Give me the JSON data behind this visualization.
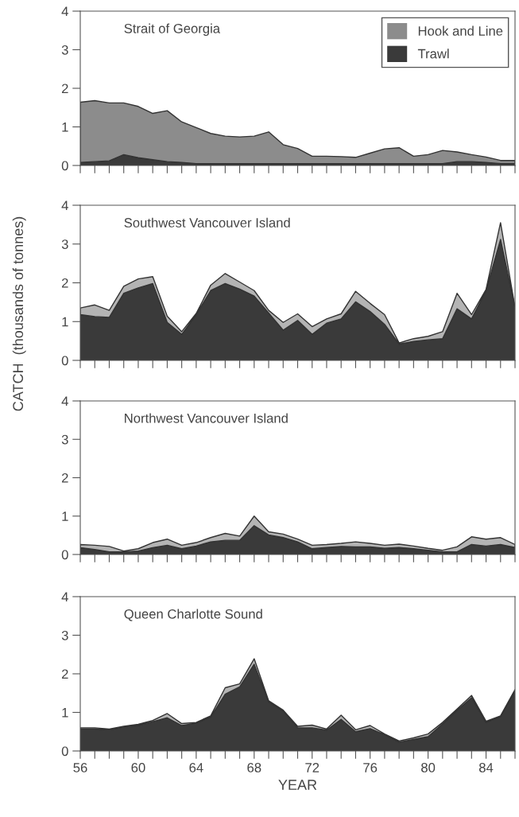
{
  "chart_data": [
    {
      "type": "area",
      "title": "Strait of Georgia",
      "stacked": true,
      "legend": "top right",
      "tick_labels": "y",
      "x": [
        56,
        57,
        58,
        59,
        60,
        61,
        62,
        63,
        64,
        65,
        66,
        67,
        68,
        69,
        70,
        71,
        72,
        73,
        74,
        75,
        76,
        77,
        78,
        79,
        80,
        81,
        82,
        83,
        84,
        85,
        86
      ],
      "xlim": [
        56,
        86
      ],
      "ylim": [
        0,
        4
      ],
      "yticks": [
        0,
        1,
        2,
        3,
        4
      ],
      "xticks": [
        56,
        {
          "value": 57,
          "label": null
        },
        {
          "value": 58,
          "label": null
        },
        {
          "value": 59,
          "label": null
        },
        60,
        {
          "value": 61,
          "label": null
        },
        {
          "value": 62,
          "label": null
        },
        {
          "value": 63,
          "label": null
        },
        64,
        {
          "value": 65,
          "label": null
        },
        {
          "value": 66,
          "label": null
        },
        {
          "value": 67,
          "label": null
        },
        68,
        {
          "value": 69,
          "label": null
        },
        {
          "value": 70,
          "label": null
        },
        {
          "value": 71,
          "label": null
        },
        72,
        {
          "value": 73,
          "label": null
        },
        {
          "value": 74,
          "label": null
        },
        {
          "value": 75,
          "label": null
        },
        76,
        {
          "value": 77,
          "label": null
        },
        {
          "value": 78,
          "label": null
        },
        {
          "value": 79,
          "label": null
        },
        80,
        {
          "value": 81,
          "label": null
        },
        {
          "value": 82,
          "label": null
        },
        {
          "value": 83,
          "label": null
        },
        84,
        {
          "value": 85,
          "label": null
        },
        {
          "value": 86,
          "label": null
        }
      ],
      "series": [
        {
          "name": "Trawl",
          "color": "#3a3a3a",
          "values": [
            0.08,
            0.1,
            0.12,
            0.28,
            0.2,
            0.15,
            0.1,
            0.08,
            0.05,
            0.05,
            0.05,
            0.05,
            0.05,
            0.05,
            0.05,
            0.05,
            0.05,
            0.05,
            0.05,
            0.05,
            0.05,
            0.05,
            0.05,
            0.05,
            0.05,
            0.05,
            0.1,
            0.1,
            0.08,
            0.05,
            0.05
          ]
        },
        {
          "name": "Hook and Line",
          "color": "#8c8c8c",
          "values": [
            1.56,
            1.58,
            1.5,
            1.34,
            1.33,
            1.2,
            1.32,
            1.05,
            0.93,
            0.78,
            0.71,
            0.69,
            0.71,
            0.82,
            0.49,
            0.39,
            0.19,
            0.19,
            0.18,
            0.16,
            0.27,
            0.38,
            0.41,
            0.19,
            0.23,
            0.34,
            0.25,
            0.18,
            0.14,
            0.08,
            0.08
          ]
        }
      ]
    },
    {
      "type": "area",
      "title": "Southwest Vancouver Island",
      "ylabel": "CATCH  (thousands of tonnes)",
      "stacked": true,
      "tick_labels": "y",
      "x": [
        56,
        57,
        58,
        59,
        60,
        61,
        62,
        63,
        64,
        65,
        66,
        67,
        68,
        69,
        70,
        71,
        72,
        73,
        74,
        75,
        76,
        77,
        78,
        79,
        80,
        81,
        82,
        83,
        84,
        85,
        86
      ],
      "xlim": [
        56,
        86
      ],
      "ylim": [
        0,
        4
      ],
      "yticks": [
        0,
        1,
        2,
        3,
        4
      ],
      "xticks": [
        56,
        {
          "value": 57,
          "label": null
        },
        {
          "value": 58,
          "label": null
        },
        {
          "value": 59,
          "label": null
        },
        60,
        {
          "value": 61,
          "label": null
        },
        {
          "value": 62,
          "label": null
        },
        {
          "value": 63,
          "label": null
        },
        64,
        {
          "value": 65,
          "label": null
        },
        {
          "value": 66,
          "label": null
        },
        {
          "value": 67,
          "label": null
        },
        68,
        {
          "value": 69,
          "label": null
        },
        {
          "value": 70,
          "label": null
        },
        {
          "value": 71,
          "label": null
        },
        72,
        {
          "value": 73,
          "label": null
        },
        {
          "value": 74,
          "label": null
        },
        {
          "value": 75,
          "label": null
        },
        76,
        {
          "value": 77,
          "label": null
        },
        {
          "value": 78,
          "label": null
        },
        {
          "value": 79,
          "label": null
        },
        80,
        {
          "value": 81,
          "label": null
        },
        {
          "value": 82,
          "label": null
        },
        {
          "value": 83,
          "label": null
        },
        84,
        {
          "value": 85,
          "label": null
        },
        {
          "value": 86,
          "label": null
        }
      ],
      "series": [
        {
          "color": "#3a3a3a",
          "values": [
            1.18,
            1.13,
            1.11,
            1.73,
            1.87,
            1.98,
            0.98,
            0.67,
            1.18,
            1.8,
            1.98,
            1.84,
            1.66,
            1.22,
            0.78,
            1.03,
            0.67,
            0.96,
            1.07,
            1.51,
            1.26,
            0.93,
            0.42,
            0.49,
            0.53,
            0.56,
            1.33,
            1.07,
            1.8,
            3.12,
            1.36
          ]
        },
        {
          "color": "#b4b4b4",
          "values": [
            0.17,
            0.3,
            0.18,
            0.18,
            0.23,
            0.18,
            0.16,
            0.07,
            0.03,
            0.14,
            0.26,
            0.18,
            0.14,
            0.07,
            0.2,
            0.17,
            0.2,
            0.11,
            0.13,
            0.27,
            0.21,
            0.25,
            0.03,
            0.07,
            0.09,
            0.18,
            0.4,
            0.11,
            0.03,
            0.43,
            0
          ]
        }
      ]
    },
    {
      "type": "area",
      "title": "Northwest Vancouver Island",
      "stacked": true,
      "tick_labels": "y",
      "x": [
        56,
        57,
        58,
        59,
        60,
        61,
        62,
        63,
        64,
        65,
        66,
        67,
        68,
        69,
        70,
        71,
        72,
        73,
        74,
        75,
        76,
        77,
        78,
        79,
        80,
        81,
        82,
        83,
        84,
        85,
        86
      ],
      "xlim": [
        56,
        86
      ],
      "ylim": [
        0,
        4
      ],
      "yticks": [
        0,
        1,
        2,
        3,
        4
      ],
      "xticks": [
        56,
        {
          "value": 57,
          "label": null
        },
        {
          "value": 58,
          "label": null
        },
        {
          "value": 59,
          "label": null
        },
        60,
        {
          "value": 61,
          "label": null
        },
        {
          "value": 62,
          "label": null
        },
        {
          "value": 63,
          "label": null
        },
        64,
        {
          "value": 65,
          "label": null
        },
        {
          "value": 66,
          "label": null
        },
        {
          "value": 67,
          "label": null
        },
        68,
        {
          "value": 69,
          "label": null
        },
        {
          "value": 70,
          "label": null
        },
        {
          "value": 71,
          "label": null
        },
        72,
        {
          "value": 73,
          "label": null
        },
        {
          "value": 74,
          "label": null
        },
        {
          "value": 75,
          "label": null
        },
        76,
        {
          "value": 77,
          "label": null
        },
        {
          "value": 78,
          "label": null
        },
        {
          "value": 79,
          "label": null
        },
        80,
        {
          "value": 81,
          "label": null
        },
        {
          "value": 82,
          "label": null
        },
        {
          "value": 83,
          "label": null
        },
        84,
        {
          "value": 85,
          "label": null
        },
        {
          "value": 86,
          "label": null
        }
      ],
      "series": [
        {
          "color": "#3a3a3a",
          "values": [
            0.18,
            0.13,
            0.07,
            0.07,
            0.09,
            0.18,
            0.24,
            0.15,
            0.22,
            0.33,
            0.37,
            0.37,
            0.75,
            0.51,
            0.44,
            0.33,
            0.15,
            0.18,
            0.21,
            0.2,
            0.2,
            0.16,
            0.18,
            0.15,
            0.11,
            0.07,
            0.07,
            0.26,
            0.22,
            0.26,
            0.18
          ]
        },
        {
          "color": "#b4b4b4",
          "values": [
            0.08,
            0.11,
            0.14,
            0.02,
            0.06,
            0.13,
            0.16,
            0.09,
            0.09,
            0.11,
            0.18,
            0.11,
            0.25,
            0.08,
            0.09,
            0.07,
            0.09,
            0.08,
            0.08,
            0.13,
            0.09,
            0.08,
            0.09,
            0.07,
            0.05,
            0.04,
            0.13,
            0.2,
            0.18,
            0.18,
            0.08
          ]
        }
      ]
    },
    {
      "type": "area",
      "title": "Queen Charlotte Sound",
      "xlabel": "YEAR",
      "stacked": true,
      "x": [
        56,
        57,
        58,
        59,
        60,
        61,
        62,
        63,
        64,
        65,
        66,
        67,
        68,
        69,
        70,
        71,
        72,
        73,
        74,
        75,
        76,
        77,
        78,
        79,
        80,
        81,
        82,
        83,
        84,
        85,
        86
      ],
      "xlim": [
        56,
        86
      ],
      "ylim": [
        0,
        4
      ],
      "yticks": [
        0,
        1,
        2,
        3,
        4
      ],
      "xticks": [
        56,
        {
          "value": 57,
          "label": null
        },
        {
          "value": 58,
          "label": null
        },
        {
          "value": 59,
          "label": null
        },
        60,
        {
          "value": 61,
          "label": null
        },
        {
          "value": 62,
          "label": null
        },
        {
          "value": 63,
          "label": null
        },
        64,
        {
          "value": 65,
          "label": null
        },
        {
          "value": 66,
          "label": null
        },
        {
          "value": 67,
          "label": null
        },
        68,
        {
          "value": 69,
          "label": null
        },
        {
          "value": 70,
          "label": null
        },
        {
          "value": 71,
          "label": null
        },
        72,
        {
          "value": 73,
          "label": null
        },
        {
          "value": 74,
          "label": null
        },
        {
          "value": 75,
          "label": null
        },
        76,
        {
          "value": 77,
          "label": null
        },
        {
          "value": 78,
          "label": null
        },
        {
          "value": 79,
          "label": null
        },
        80,
        {
          "value": 81,
          "label": null
        },
        {
          "value": 82,
          "label": null
        },
        {
          "value": 83,
          "label": null
        },
        84,
        {
          "value": 85,
          "label": null
        },
        {
          "value": 86,
          "label": null
        }
      ],
      "series": [
        {
          "color": "#3a3a3a",
          "values": [
            0.57,
            0.57,
            0.55,
            0.62,
            0.66,
            0.76,
            0.86,
            0.66,
            0.72,
            0.88,
            1.47,
            1.66,
            2.25,
            1.27,
            1.04,
            0.6,
            0.6,
            0.54,
            0.82,
            0.5,
            0.58,
            0.42,
            0.23,
            0.3,
            0.37,
            0.7,
            1.05,
            1.38,
            0.74,
            0.89,
            1.56
          ]
        },
        {
          "color": "#b4b4b4",
          "values": [
            0.03,
            0.03,
            0.02,
            0.02,
            0.03,
            0.03,
            0.11,
            0.05,
            0.02,
            0.03,
            0.17,
            0.08,
            0.14,
            0.03,
            0.02,
            0.04,
            0.07,
            0.03,
            0.11,
            0.05,
            0.08,
            0.02,
            0.03,
            0.04,
            0.07,
            0.04,
            0.04,
            0.06,
            0.03,
            0.02,
            0.03
          ]
        }
      ]
    }
  ]
}
